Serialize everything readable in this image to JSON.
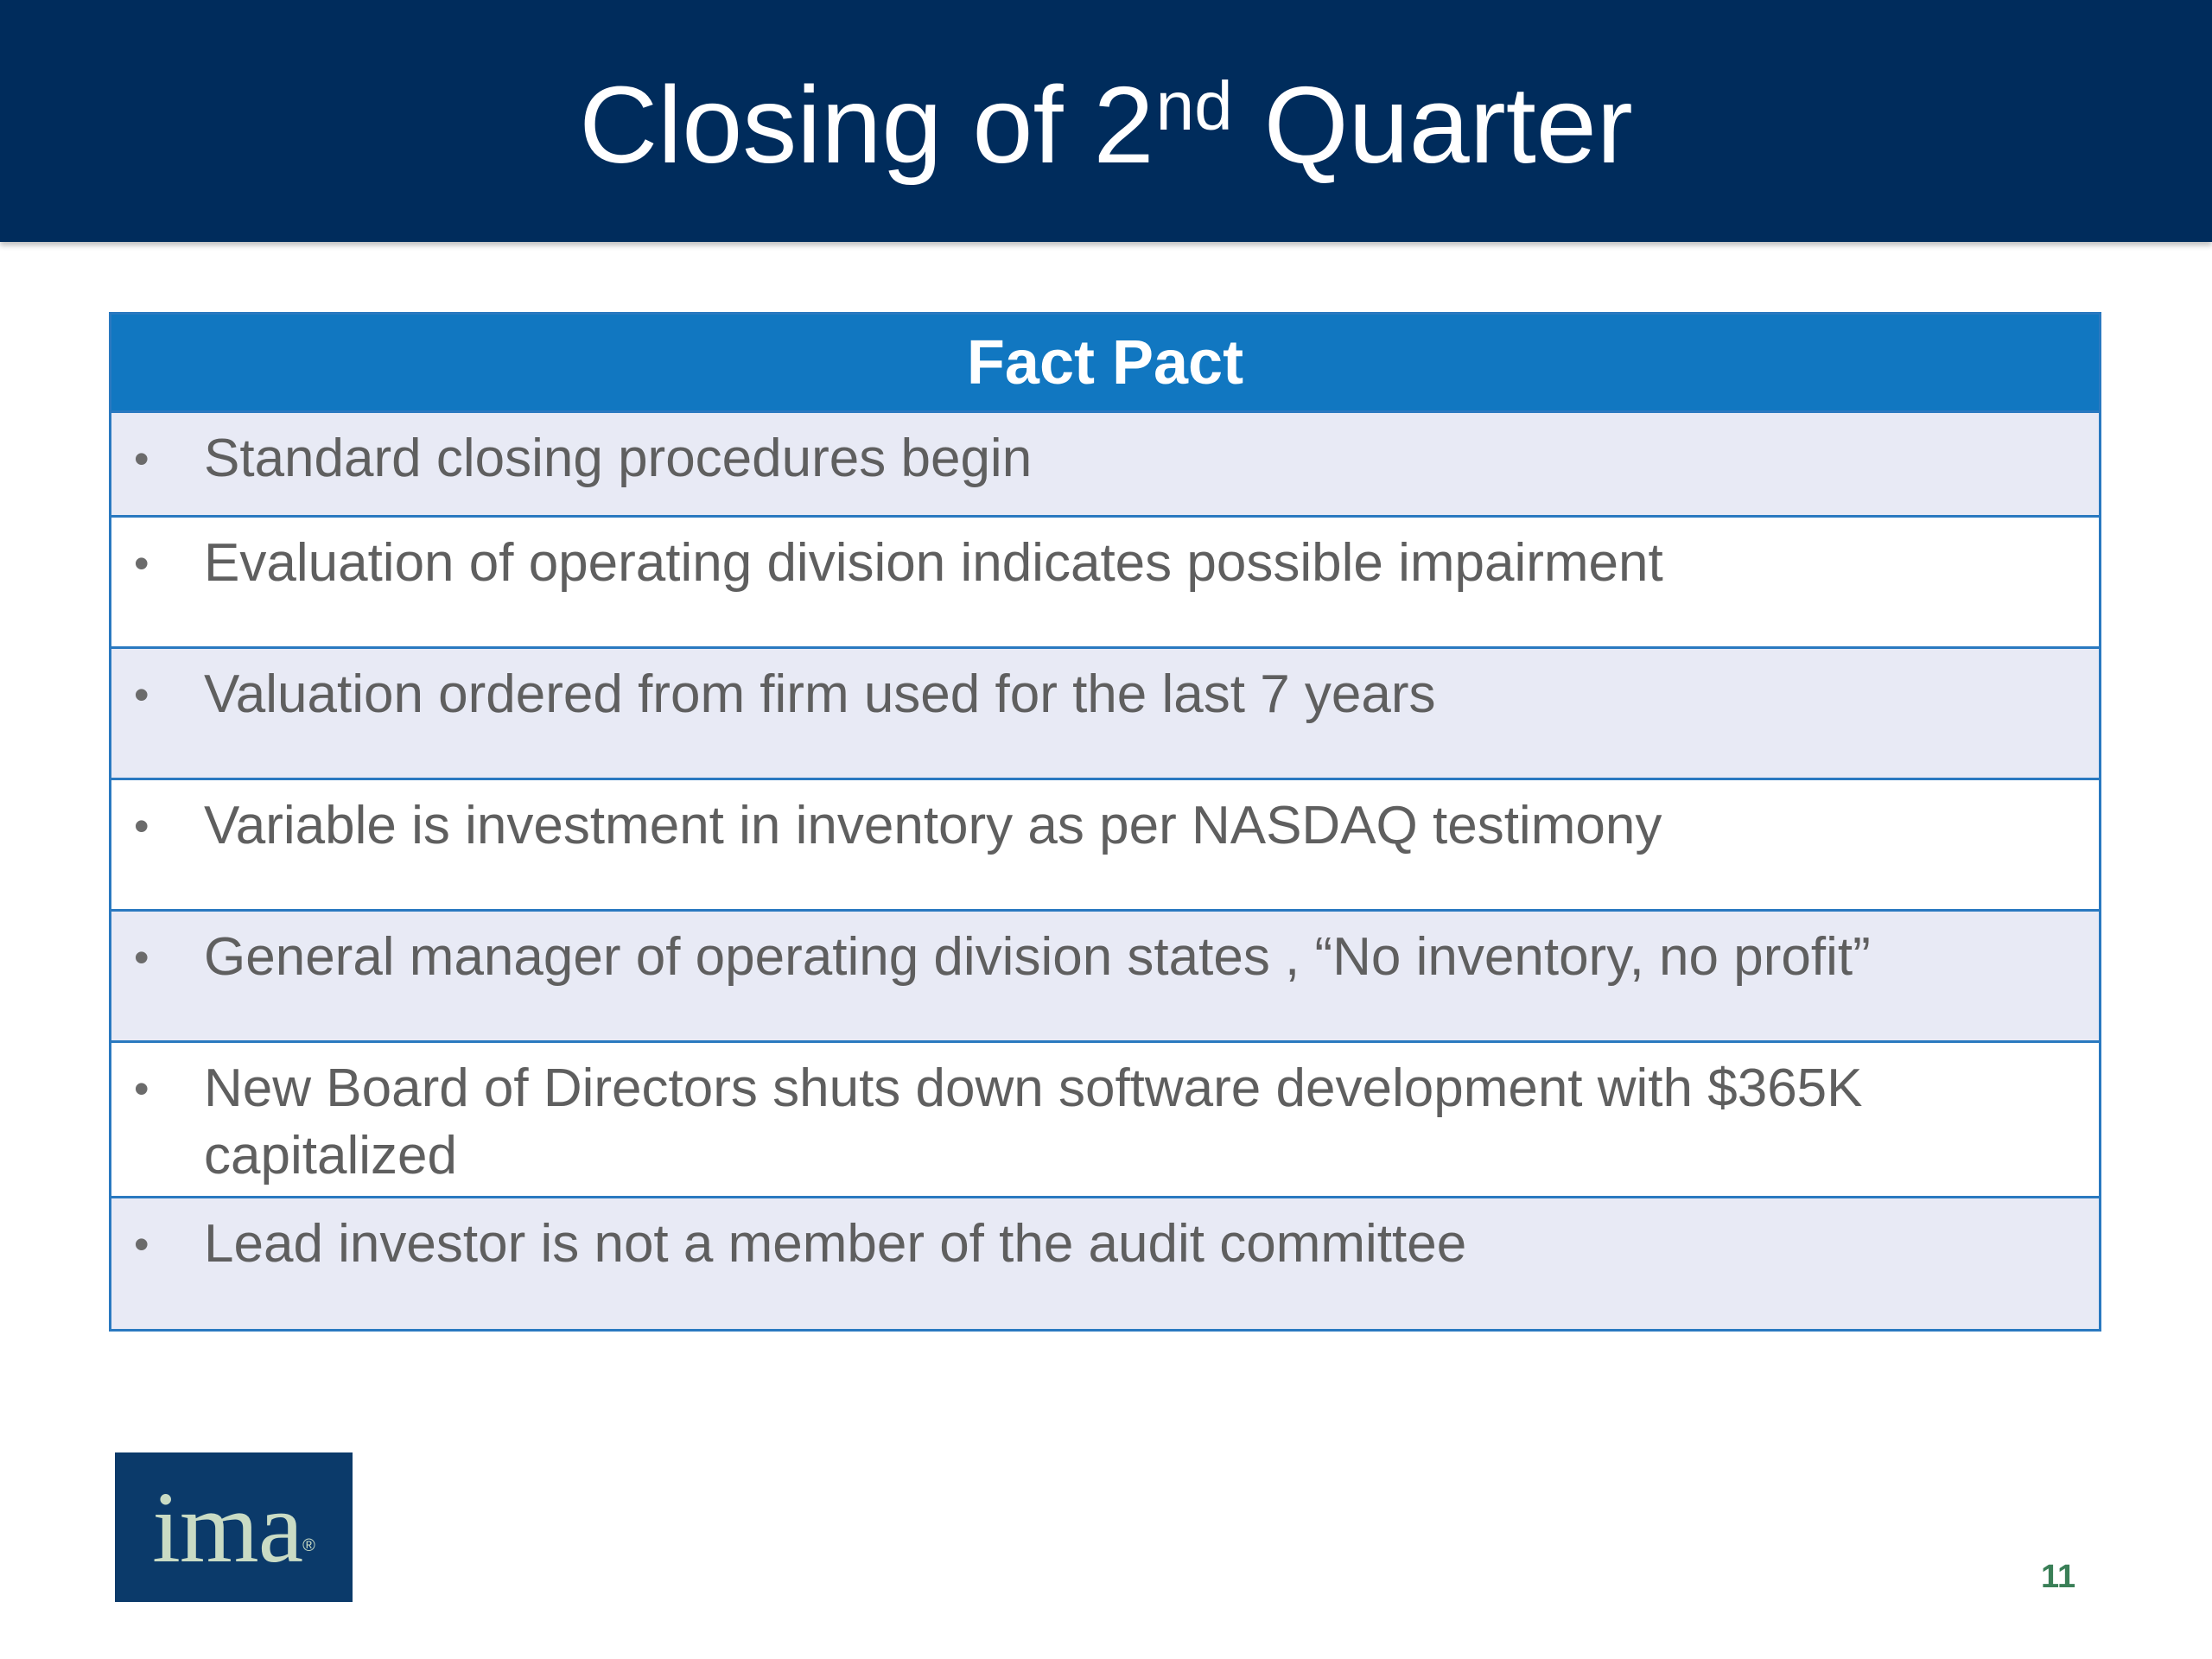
{
  "slide": {
    "title_main": "Closing of 2",
    "title_sup": "nd",
    "title_end": "Quarter",
    "page_number": "11"
  },
  "table": {
    "header": "Fact Pact",
    "bullet": "•",
    "rows": [
      "Standard closing procedures begin",
      "Evaluation of operating division indicates possible impairment",
      "Valuation ordered from firm used for the last 7 years",
      "Variable is investment in inventory as per NASDAQ testimony",
      "General manager of operating division states , “No inventory, no profit”",
      "New Board of Directors shuts down software development with $365K capitalized",
      "Lead investor is not a member of the audit committee"
    ]
  },
  "logo": {
    "text": "ima",
    "mark": "®"
  },
  "colors": {
    "header_bar": "#002c5c",
    "table_header": "#1177c1",
    "row_shaded": "#e8eaf5",
    "row_border": "#2a79c0",
    "logo_bg": "#0b3a6a",
    "page_number": "#3a7f57"
  }
}
